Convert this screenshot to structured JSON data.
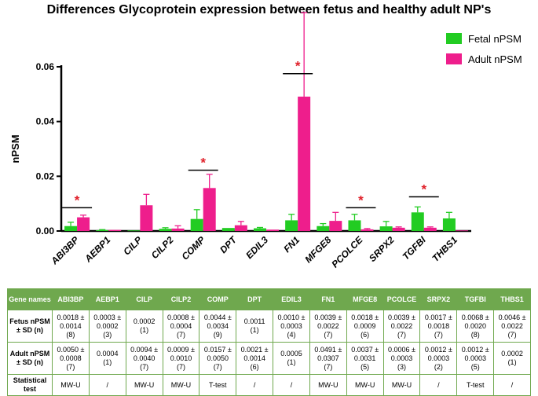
{
  "chart_data": {
    "type": "bar",
    "title": "Differences Glycoprotein expression between fetus and healthy adult NP's",
    "xlabel": "",
    "ylabel": "nPSM",
    "ylim": [
      0,
      0.06
    ],
    "yticks": [
      "0.00",
      "0.02",
      "0.04",
      "0.06"
    ],
    "categories": [
      "ABI3BP",
      "AEBP1",
      "CILP",
      "CILP2",
      "COMP",
      "DPT",
      "EDIL3",
      "FN1",
      "MFGE8",
      "PCOLCE",
      "SRPX2",
      "TGFBI",
      "THBS1"
    ],
    "series": [
      {
        "name": "Fetal nPSM",
        "color": "#22cc22",
        "values": [
          0.0018,
          0.0003,
          0.0002,
          0.0008,
          0.0044,
          0.0011,
          0.001,
          0.0039,
          0.0018,
          0.0039,
          0.0017,
          0.0068,
          0.0046
        ],
        "errors": [
          0.0014,
          0.0002,
          0,
          0.0004,
          0.0034,
          0,
          0.0003,
          0.0022,
          0.0009,
          0.0022,
          0.0018,
          0.002,
          0.0022
        ]
      },
      {
        "name": "Adult nPSM",
        "color": "#ee1e8c",
        "values": [
          0.005,
          0.0004,
          0.0094,
          0.0009,
          0.0157,
          0.0021,
          0.0005,
          0.0491,
          0.0037,
          0.0006,
          0.0012,
          0.0012,
          0.0002
        ],
        "errors": [
          0.0008,
          0,
          0.004,
          0.001,
          0.005,
          0.0014,
          0,
          0.0307,
          0.0031,
          0.0003,
          0.0003,
          0.0003,
          0
        ]
      }
    ],
    "significance": [
      {
        "category": "ABI3BP",
        "marker": "*",
        "height": 0.0085
      },
      {
        "category": "COMP",
        "marker": "*",
        "height": 0.0222
      },
      {
        "category": "FN1",
        "marker": "*",
        "height": 0.0575
      },
      {
        "category": "PCOLCE",
        "marker": "*",
        "height": 0.0085
      },
      {
        "category": "TGFBI",
        "marker": "*",
        "height": 0.0125
      }
    ],
    "legend_position": "top-right"
  },
  "table": {
    "header": [
      "Gene names",
      "ABI3BP",
      "AEBP1",
      "CILP",
      "CILP2",
      "COMP",
      "DPT",
      "EDIL3",
      "FN1",
      "MFGE8",
      "PCOLCE",
      "SRPX2",
      "TGFBI",
      "THBS1"
    ],
    "rows": [
      [
        "Fetus nPSM ± SD (n)",
        "0.0018 ±\n0.0014\n(8)",
        "0.0003 ±\n0.0002\n(3)",
        "0.0002\n(1)",
        "0.0008 ±\n0.0004\n(7)",
        "0.0044 ±\n0.0034\n(9)",
        "0.0011\n(1)",
        "0.0010 ±\n0.0003\n(4)",
        "0.0039 ±\n0.0022\n(7)",
        "0.0018 ±\n0.0009\n(6)",
        "0.0039 ±\n0.0022\n(7)",
        "0.0017 ±\n0.0018\n(7)",
        "0.0068 ±\n0.0020\n(8)",
        "0.0046 ±\n0.0022\n(7)"
      ],
      [
        "Adult nPSM ± SD (n)",
        "0.0050 ±\n0.0008\n(7)",
        "0.0004\n(1)",
        "0.0094 ±\n0.0040\n(7)",
        "0.0009 ±\n0.0010\n(7)",
        "0.0157 ±\n0.0050\n(7)",
        "0.0021 ±\n0.0014\n(6)",
        "0.0005\n(1)",
        "0.0491 ±\n0.0307\n(7)",
        "0.0037 ±\n0.0031\n(5)",
        "0.0006 ±\n0.0003\n(3)",
        "0.0012 ±\n0.0003\n(2)",
        "0.0012 ±\n0.0003\n(5)",
        "0.0002\n(1)"
      ],
      [
        "Statistical test",
        "MW-U",
        "/",
        "MW-U",
        "MW-U",
        "T-test",
        "/",
        "/",
        "MW-U",
        "MW-U",
        "MW-U",
        "/",
        "T-test",
        "/"
      ]
    ]
  }
}
